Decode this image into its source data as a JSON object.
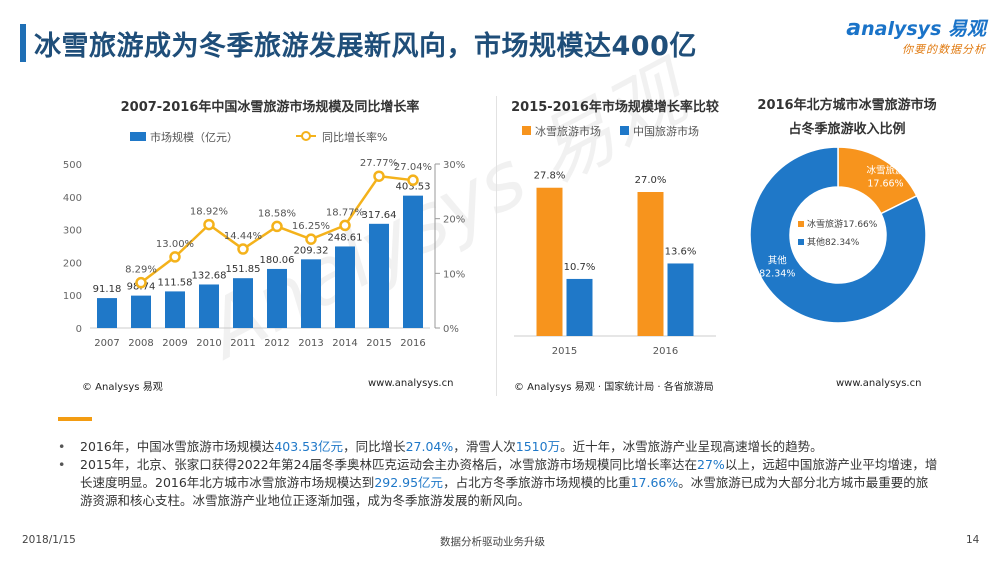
{
  "header": {
    "title": "冰雪旅游成为冬季旅游发展新风向，市场规模达400亿",
    "logo_brand": "nalysys 易观",
    "logo_slogan": "你要的数据分析"
  },
  "watermark": "Analysys 易观",
  "colors": {
    "blue": "#1f78c8",
    "orange": "#f7941d",
    "line_orange": "#f4b21b",
    "title_blue": "#1f4e79"
  },
  "chart_data": [
    {
      "type": "bar",
      "title": "2007-2016年中国冰雪旅游市场规模及同比增长率",
      "categories": [
        "2007",
        "2008",
        "2009",
        "2010",
        "2011",
        "2012",
        "2013",
        "2014",
        "2015",
        "2016"
      ],
      "series": [
        {
          "name": "市场规模（亿元）",
          "type": "bar",
          "axis": "left",
          "values": [
            91.18,
            98.74,
            111.58,
            132.68,
            151.85,
            180.06,
            209.32,
            248.61,
            317.64,
            403.53
          ],
          "labels": [
            "91.18",
            "98.74",
            "111.58",
            "132.68",
            "151.85",
            "180.06",
            "209.32",
            "248.61",
            "317.64",
            "403.53"
          ]
        },
        {
          "name": "同比增长率%",
          "type": "line",
          "axis": "right",
          "values": [
            null,
            8.29,
            13.0,
            18.92,
            14.44,
            18.58,
            16.25,
            18.77,
            27.77,
            27.04
          ],
          "labels": [
            "",
            "8.29%",
            "13.00%",
            "18.92%",
            "14.44%",
            "18.58%",
            "16.25%",
            "18.77%",
            "27.77%",
            "27.04%"
          ]
        }
      ],
      "ylim": [
        0,
        500
      ],
      "yticks": [
        "0",
        "100",
        "200",
        "300",
        "400",
        "500"
      ],
      "y2lim": [
        0,
        30
      ],
      "y2ticks": [
        "0%",
        "10%",
        "20%",
        "30%"
      ],
      "legend_position": "top",
      "source_left": "© Analysys 易观",
      "source_right": "www.analysys.cn"
    },
    {
      "type": "bar",
      "title": "2015-2016年市场规模增长率比较",
      "categories": [
        "2015",
        "2016"
      ],
      "series": [
        {
          "name": "冰雪旅游市场",
          "values": [
            27.8,
            27.0
          ],
          "labels": [
            "27.8%",
            "27.0%"
          ]
        },
        {
          "name": "中国旅游市场",
          "values": [
            10.7,
            13.6
          ],
          "labels": [
            "10.7%",
            "13.6%"
          ]
        }
      ],
      "ylim": [
        0,
        30
      ],
      "legend_position": "top",
      "source_left": "© Analysys 易观 · 国家统计局 · 各省旅游局",
      "source_right": "www.analysys.cn"
    },
    {
      "type": "pie",
      "title_line1": "2016年北方城市冰雪旅游市场",
      "title_line2": "占冬季旅游收入比例",
      "slices": [
        {
          "name": "冰雪旅游",
          "value": 17.66,
          "label": "17.66%"
        },
        {
          "name": "其他",
          "value": 82.34,
          "label": "82.34%"
        }
      ],
      "inner_legend": [
        "冰雪旅游17.66%",
        "其他82.34%"
      ],
      "legend_position": "center"
    }
  ],
  "bullets": [
    [
      {
        "t": "2016年，中国冰雪旅游市场规模达",
        "hl": false
      },
      {
        "t": "403.53亿元",
        "hl": true
      },
      {
        "t": "，同比增长",
        "hl": false
      },
      {
        "t": "27.04%",
        "hl": true
      },
      {
        "t": "，滑雪人次",
        "hl": false
      },
      {
        "t": "1510万",
        "hl": true
      },
      {
        "t": "。近十年，冰雪旅游产业呈现高速增长的趋势。",
        "hl": false
      }
    ],
    [
      {
        "t": "2015年，北京、张家口获得2022年第24届冬季奥林匹克运动会主办资格后，冰雪旅游市场规模同比增长率达在",
        "hl": false
      },
      {
        "t": "27%",
        "hl": true
      },
      {
        "t": "以上，远超中国旅游产业平均增速，增长速度明显。2016年北方城市冰雪旅游市场规模达到",
        "hl": false
      },
      {
        "t": "292.95亿元",
        "hl": true
      },
      {
        "t": "，占北方冬季旅游市场规模的比重",
        "hl": false
      },
      {
        "t": "17.66%",
        "hl": true
      },
      {
        "t": "。冰雪旅游已成为大部分北方城市最重要的旅游资源和核心支柱。冰雪旅游产业地位正逐渐加强，成为冬季旅游发展的新风向。",
        "hl": false
      }
    ]
  ],
  "footer": {
    "date": "2018/1/15",
    "slogan": "数据分析驱动业务升级",
    "page": "14"
  }
}
